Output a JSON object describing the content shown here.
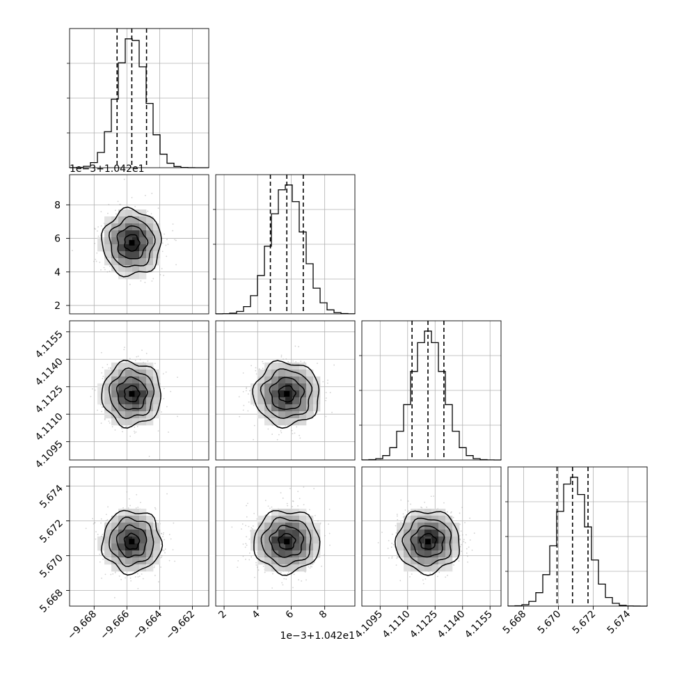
{
  "chart_data": {
    "type": "corner",
    "description_type": "corner plot (1-D histograms on diagonal, 2-D histograms with contours below)",
    "parameters": [
      {
        "name": "p0",
        "range": [
          -9.6695,
          -9.661
        ],
        "ticks": [
          -9.668,
          -9.666,
          -9.664,
          -9.662
        ],
        "tick_labels": [
          "−9.668",
          "−9.666",
          "−9.664",
          "−9.662"
        ],
        "mean": -9.6657,
        "sigma": 0.0009,
        "quantiles": [
          -9.6666,
          -9.6657,
          -9.6648
        ],
        "offset_label": ""
      },
      {
        "name": "p1",
        "range": [
          1.5,
          9.8
        ],
        "ticks": [
          2,
          4,
          6,
          8
        ],
        "tick_labels": [
          "2",
          "4",
          "6",
          "8"
        ],
        "mean": 5.74,
        "sigma": 0.98,
        "quantiles": [
          4.76,
          5.74,
          6.72
        ],
        "offset_label": "1e−3+1.042e1"
      },
      {
        "name": "p2",
        "range": [
          4.1085,
          4.1161
        ],
        "ticks": [
          4.1095,
          4.111,
          4.1125,
          4.114,
          4.1155
        ],
        "tick_labels": [
          "4.1095",
          "4.1110",
          "4.1125",
          "4.1140",
          "4.1155"
        ],
        "mean": 4.11211,
        "sigma": 0.00087,
        "quantiles": [
          4.11124,
          4.11211,
          4.11298
        ],
        "offset_label": ""
      },
      {
        "name": "p3",
        "range": [
          5.6671,
          5.6751
        ],
        "ticks": [
          5.668,
          5.67,
          5.672,
          5.674
        ],
        "tick_labels": [
          "5.668",
          "5.670",
          "5.672",
          "5.674"
        ],
        "mean": 5.67081,
        "sigma": 0.00089,
        "quantiles": [
          5.66992,
          5.67081,
          5.6717
        ],
        "offset_label": ""
      }
    ],
    "histogram_peak_offsets": [
      {
        "parameter": "p0",
        "peak": -9.6658
      },
      {
        "parameter": "p1",
        "peak": 5.9
      },
      {
        "parameter": "p2",
        "peak": 4.1121
      },
      {
        "parameter": "p3",
        "peak": 5.6708
      }
    ],
    "contour_levels": [
      0.118,
      0.393,
      0.675,
      0.865
    ],
    "grid": true,
    "legend": "none"
  }
}
